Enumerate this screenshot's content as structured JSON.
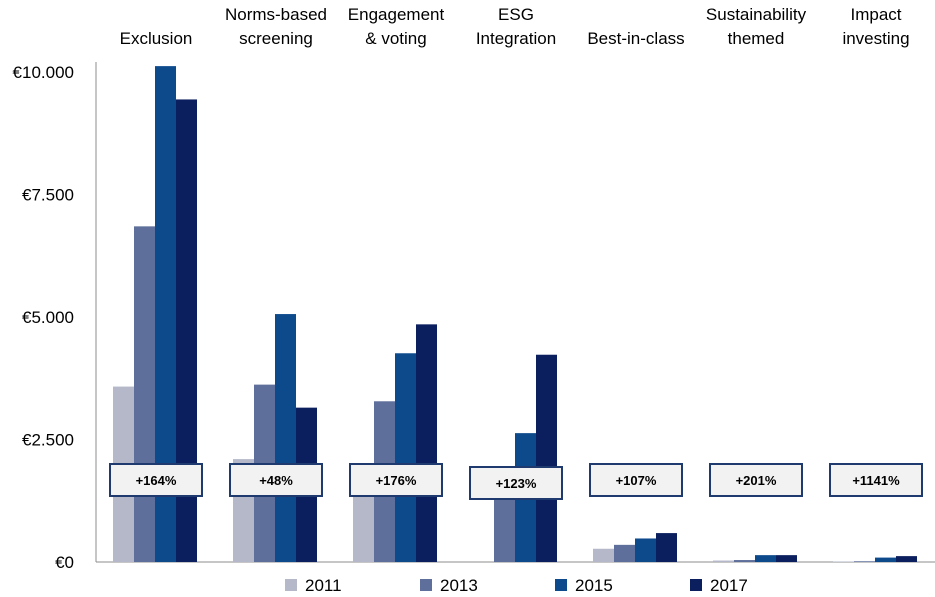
{
  "chart_data": {
    "type": "bar",
    "title": "",
    "xlabel": "",
    "ylabel": "",
    "ylim": [
      0,
      10000
    ],
    "grid": false,
    "legend_position": "bottom",
    "categories": [
      [
        "Exclusion"
      ],
      [
        "Norms-based",
        "screening"
      ],
      [
        "Engagement",
        "& voting"
      ],
      [
        "ESG",
        "Integration"
      ],
      [
        "Best-in-class"
      ],
      [
        "Sustainability",
        "themed"
      ],
      [
        "Impact",
        "investing"
      ]
    ],
    "y_ticks": [
      {
        "value": 0,
        "label": "€0"
      },
      {
        "value": 2500,
        "label": "€2.500"
      },
      {
        "value": 5000,
        "label": "€5.000"
      },
      {
        "value": 7500,
        "label": "€7.500"
      },
      {
        "value": 10000,
        "label": "€10.000"
      }
    ],
    "series": [
      {
        "name": "2011",
        "color": "#b4b8c9",
        "values": [
          3580,
          2100,
          1350,
          0,
          270,
          30,
          10
        ]
      },
      {
        "name": "2013",
        "color": "#5f6f9b",
        "values": [
          6850,
          3620,
          3280,
          1380,
          350,
          40,
          15
        ]
      },
      {
        "name": "2015",
        "color": "#0d4a8c",
        "values": [
          10120,
          5060,
          4260,
          2630,
          480,
          140,
          90
        ]
      },
      {
        "name": "2017",
        "color": "#0b1f5e",
        "values": [
          9440,
          3150,
          4850,
          4230,
          590,
          140,
          120
        ]
      }
    ],
    "growth_labels": [
      "+164%",
      "+48%",
      "+176%",
      "+123%",
      "+107%",
      "+201%",
      "+1141%"
    ],
    "growth_box_color": "#1f3a6e"
  }
}
